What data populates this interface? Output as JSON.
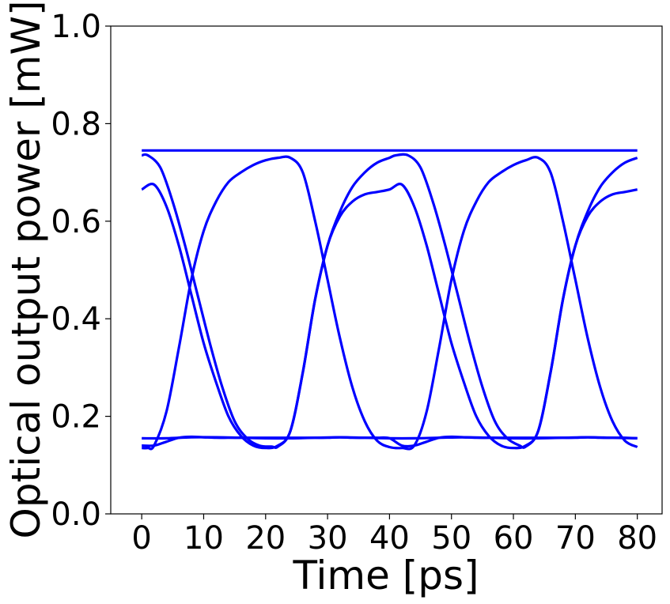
{
  "chart_data": {
    "type": "line",
    "title": "",
    "xlabel": "Time [ps]",
    "ylabel": "Optical output power [mW]",
    "xlim": [
      -5,
      84
    ],
    "ylim": [
      0,
      1
    ],
    "xticks": [
      0,
      10,
      20,
      30,
      40,
      50,
      60,
      70,
      80
    ],
    "yticks": [
      0,
      0.2,
      0.4,
      0.6,
      0.8,
      1.0
    ],
    "xtick_labels": [
      "0",
      "10",
      "20",
      "30",
      "40",
      "50",
      "60",
      "70",
      "80"
    ],
    "ytick_labels": [
      "0.0",
      "0.2",
      "0.4",
      "0.6",
      "0.8",
      "1.0"
    ],
    "grid": false,
    "legend": "none",
    "line_color": "#0000ff",
    "bit_period_ps": 20,
    "series": [
      {
        "x": [
          0,
          2,
          5,
          8,
          11,
          14,
          17,
          20,
          22,
          24,
          26,
          28,
          30,
          34,
          38,
          42,
          46,
          50,
          54,
          58,
          62,
          66,
          70,
          74,
          78,
          80
        ],
        "values": [
          0.745,
          0.745,
          0.745,
          0.745,
          0.745,
          0.745,
          0.745,
          0.745,
          0.745,
          0.745,
          0.745,
          0.745,
          0.745,
          0.745,
          0.745,
          0.745,
          0.745,
          0.745,
          0.745,
          0.745,
          0.745,
          0.745,
          0.745,
          0.745,
          0.745,
          0.745
        ]
      },
      {
        "x": [
          0,
          1,
          3,
          5,
          7,
          9,
          11,
          13,
          15,
          17,
          19,
          21,
          22,
          24,
          26,
          28,
          30,
          32,
          34,
          36,
          38,
          40,
          41,
          43,
          45,
          47,
          49,
          51,
          53,
          55,
          57,
          59,
          61,
          62,
          64,
          66,
          68,
          70,
          72,
          74,
          76,
          78,
          80
        ],
        "values": [
          0.735,
          0.735,
          0.71,
          0.64,
          0.55,
          0.45,
          0.35,
          0.26,
          0.19,
          0.155,
          0.14,
          0.138,
          0.138,
          0.17,
          0.29,
          0.44,
          0.55,
          0.62,
          0.67,
          0.7,
          0.72,
          0.73,
          0.735,
          0.735,
          0.71,
          0.64,
          0.55,
          0.45,
          0.35,
          0.26,
          0.19,
          0.155,
          0.14,
          0.138,
          0.17,
          0.29,
          0.44,
          0.55,
          0.62,
          0.67,
          0.7,
          0.72,
          0.73
        ]
      },
      {
        "x": [
          0,
          2,
          4,
          6,
          8,
          10,
          12,
          14,
          16,
          18,
          20,
          22,
          24,
          26,
          28,
          30,
          32,
          34,
          36,
          38,
          40,
          42,
          44,
          46,
          48,
          50,
          52,
          54,
          56,
          58,
          60,
          62,
          64,
          66,
          68,
          70,
          72,
          74,
          76,
          78,
          80
        ],
        "values": [
          0.665,
          0.675,
          0.63,
          0.55,
          0.45,
          0.35,
          0.27,
          0.2,
          0.16,
          0.14,
          0.135,
          0.14,
          0.17,
          0.29,
          0.44,
          0.55,
          0.61,
          0.64,
          0.655,
          0.66,
          0.665,
          0.675,
          0.63,
          0.55,
          0.45,
          0.35,
          0.27,
          0.2,
          0.16,
          0.14,
          0.135,
          0.14,
          0.17,
          0.29,
          0.44,
          0.55,
          0.61,
          0.64,
          0.655,
          0.66,
          0.665
        ]
      },
      {
        "x": [
          0,
          1,
          2,
          4,
          6,
          8,
          10,
          12,
          14,
          16,
          18,
          20,
          22,
          24,
          26,
          28,
          30,
          32,
          34,
          36,
          38,
          40,
          42,
          44,
          46,
          48,
          50,
          52,
          54,
          56,
          58,
          60,
          62,
          64,
          66,
          68,
          70,
          72,
          74,
          76,
          78,
          80
        ],
        "values": [
          0.135,
          0.135,
          0.14,
          0.21,
          0.34,
          0.48,
          0.58,
          0.64,
          0.68,
          0.7,
          0.715,
          0.725,
          0.73,
          0.73,
          0.7,
          0.6,
          0.48,
          0.36,
          0.26,
          0.19,
          0.15,
          0.137,
          0.135,
          0.14,
          0.21,
          0.34,
          0.48,
          0.58,
          0.64,
          0.68,
          0.7,
          0.715,
          0.725,
          0.73,
          0.7,
          0.6,
          0.48,
          0.36,
          0.26,
          0.19,
          0.15,
          0.137
        ]
      },
      {
        "x": [
          0,
          4,
          8,
          12,
          16,
          20,
          24,
          28,
          32,
          36,
          40,
          44,
          48,
          52,
          56,
          60,
          64,
          68,
          72,
          76,
          80
        ],
        "values": [
          0.155,
          0.155,
          0.157,
          0.157,
          0.156,
          0.155,
          0.155,
          0.156,
          0.157,
          0.156,
          0.155,
          0.155,
          0.156,
          0.157,
          0.156,
          0.155,
          0.155,
          0.156,
          0.157,
          0.156,
          0.155
        ]
      },
      {
        "x": [
          0,
          2,
          4,
          6,
          8,
          10,
          12,
          14,
          16,
          18,
          20,
          22,
          24,
          26,
          28,
          30,
          32,
          34,
          36,
          38,
          40,
          42,
          44,
          46,
          48,
          50,
          52,
          54,
          56,
          58,
          60,
          62,
          64,
          66,
          68,
          70,
          72,
          74,
          76,
          78,
          80
        ],
        "values": [
          0.14,
          0.14,
          0.148,
          0.156,
          0.158,
          0.157,
          0.156,
          0.156,
          0.156,
          0.156,
          0.156,
          0.156,
          0.156,
          0.156,
          0.156,
          0.156,
          0.157,
          0.156,
          0.156,
          0.156,
          0.155,
          0.14,
          0.14,
          0.148,
          0.156,
          0.158,
          0.157,
          0.156,
          0.156,
          0.156,
          0.156,
          0.156,
          0.156,
          0.156,
          0.156,
          0.156,
          0.157,
          0.156,
          0.156,
          0.156,
          0.155
        ]
      }
    ]
  }
}
